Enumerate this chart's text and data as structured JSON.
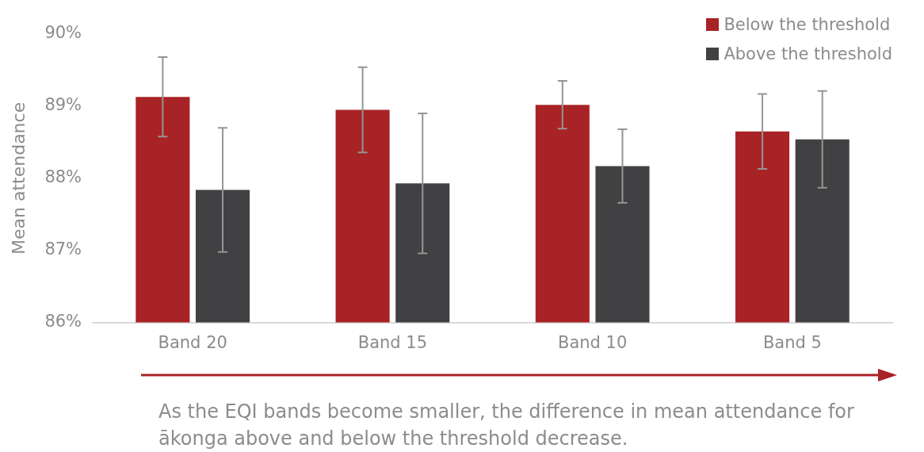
{
  "chart_data": {
    "type": "bar",
    "ylabel": "Mean attendance",
    "categories": [
      "Band 20",
      "Band 15",
      "Band 10",
      "Band 5"
    ],
    "series": [
      {
        "name": "Below the threshold",
        "color": "#a82325",
        "values": [
          89.13,
          88.95,
          89.02,
          88.65
        ],
        "errors": [
          0.55,
          0.59,
          0.33,
          0.52
        ]
      },
      {
        "name": "Above the threshold",
        "color": "#414143",
        "values": [
          87.84,
          87.93,
          88.17,
          88.54
        ],
        "errors": [
          0.86,
          0.97,
          0.51,
          0.67
        ]
      }
    ],
    "ylim": [
      86,
      90
    ],
    "yticks": [
      {
        "value": 86,
        "label": "86%"
      },
      {
        "value": 87,
        "label": "87%"
      },
      {
        "value": 88,
        "label": "88%"
      },
      {
        "value": 89,
        "label": "89%"
      },
      {
        "value": 90,
        "label": "90%"
      }
    ],
    "grid": false,
    "legend": "top right",
    "annotations": [
      "As the EQI bands become smaller, the difference in mean attendance for ākonga above and below the threshold decrease."
    ]
  }
}
